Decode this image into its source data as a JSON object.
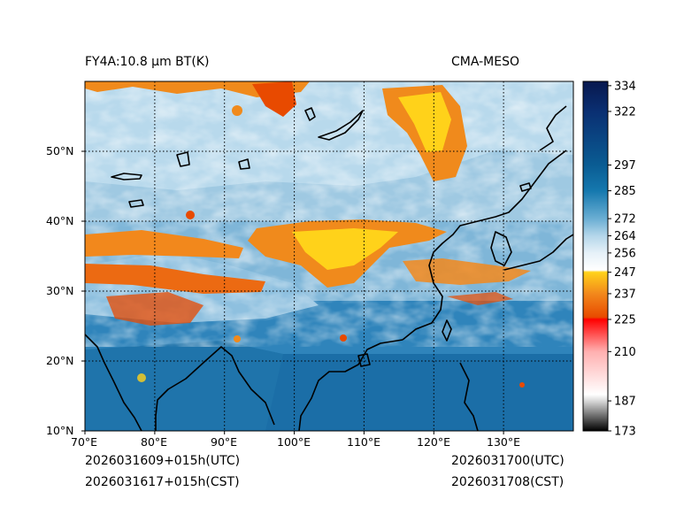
{
  "title_left": "FY4A:10.8 µm BT(K)",
  "title_right": "CMA-MESO",
  "footer": {
    "init_utc": "2026031609+015h(UTC)",
    "init_cst": "2026031617+015h(CST)",
    "valid_utc": "2026031700(UTC)",
    "valid_cst": "2026031708(CST)"
  },
  "lon_labels": [
    "70°E",
    "80°E",
    "90°E",
    "100°E",
    "110°E",
    "120°E",
    "130°E"
  ],
  "lat_labels": [
    "10°N",
    "20°N",
    "30°N",
    "40°N",
    "50°N"
  ],
  "colorbar": {
    "unit": "K",
    "ticks": [
      173,
      187,
      210,
      225,
      237,
      247,
      256,
      264,
      272,
      285,
      297,
      322,
      334
    ],
    "labels": [
      "173",
      "187",
      "210",
      "225",
      "237",
      "247",
      "256",
      "264",
      "272",
      "285",
      "297",
      "322",
      "334"
    ],
    "range": [
      173,
      336
    ],
    "stops": [
      {
        "v": 173,
        "c": "#000000"
      },
      {
        "v": 187,
        "c": "#d9d9d9"
      },
      {
        "v": 190,
        "c": "#ffffff"
      },
      {
        "v": 210,
        "c": "#ffb0b0"
      },
      {
        "v": 225,
        "c": "#ff0000"
      },
      {
        "v": 226,
        "c": "#e84a00"
      },
      {
        "v": 237,
        "c": "#f2881c"
      },
      {
        "v": 247,
        "c": "#ffd21a"
      },
      {
        "v": 248,
        "c": "#ffffff"
      },
      {
        "v": 256,
        "c": "#e6f1f8"
      },
      {
        "v": 264,
        "c": "#b4d6ea"
      },
      {
        "v": 272,
        "c": "#6aaed3"
      },
      {
        "v": 285,
        "c": "#1578ae"
      },
      {
        "v": 297,
        "c": "#0a5c93"
      },
      {
        "v": 322,
        "c": "#0a2f72"
      },
      {
        "v": 336,
        "c": "#08184e"
      }
    ]
  },
  "extent": {
    "lon": [
      70,
      140
    ],
    "lat": [
      10,
      60
    ]
  },
  "colors": {
    "ocean": "#1b6ea7",
    "land_clear": "#3d8dc0",
    "coast": "#000000",
    "grid": "#000000"
  }
}
